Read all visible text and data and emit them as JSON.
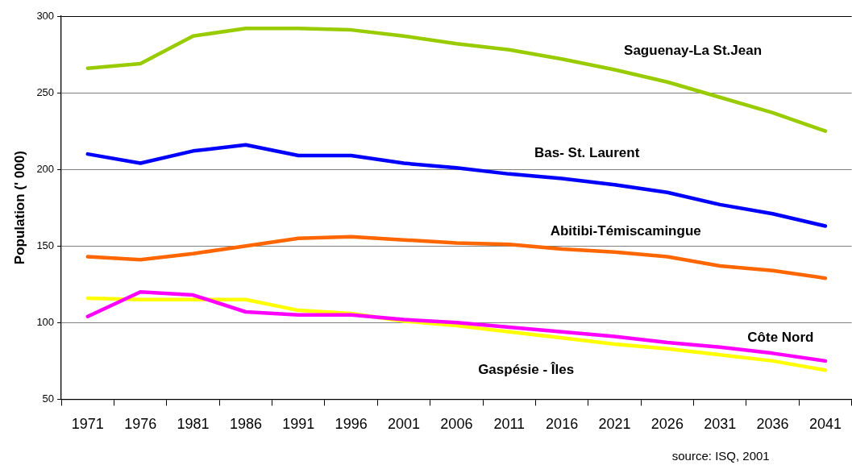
{
  "chart_data": {
    "type": "line",
    "categories": [
      "1971",
      "1976",
      "1981",
      "1986",
      "1991",
      "1996",
      "2001",
      "2006",
      "2011",
      "2016",
      "2021",
      "2026",
      "2031",
      "2036",
      "2041"
    ],
    "series": [
      {
        "name": "Saguenay-La St.Jean",
        "color": "#99cc00",
        "values": [
          266,
          269,
          287,
          292,
          292,
          291,
          287,
          282,
          278,
          272,
          265,
          257,
          247,
          237,
          225
        ]
      },
      {
        "name": "Bas- St. Laurent",
        "color": "#0000ff",
        "values": [
          210,
          204,
          212,
          216,
          209,
          209,
          204,
          201,
          197,
          194,
          190,
          185,
          177,
          171,
          163
        ]
      },
      {
        "name": "Abitibi-Témiscamingue",
        "color": "#ff6600",
        "values": [
          143,
          141,
          145,
          150,
          155,
          156,
          154,
          152,
          151,
          148,
          146,
          143,
          137,
          134,
          129
        ]
      },
      {
        "name": "Côte Nord",
        "color": "#ff00ff",
        "values": [
          104,
          120,
          118,
          107,
          105,
          105,
          102,
          100,
          97,
          94,
          91,
          87,
          84,
          80,
          75
        ]
      },
      {
        "name": "Gaspésie - Îles",
        "color": "#ffff00",
        "values": [
          116,
          115,
          115,
          115,
          108,
          106,
          101,
          98,
          94,
          90,
          86,
          83,
          79,
          75,
          69
        ]
      }
    ],
    "ylabel": "Population (' 000)",
    "ylim": [
      50,
      300
    ],
    "yticks": [
      50,
      100,
      150,
      200,
      250,
      300
    ],
    "grid": "y",
    "legend": false,
    "marker": "none",
    "line_style": "solid",
    "annotations": [
      "source: ISQ, 2001"
    ]
  }
}
